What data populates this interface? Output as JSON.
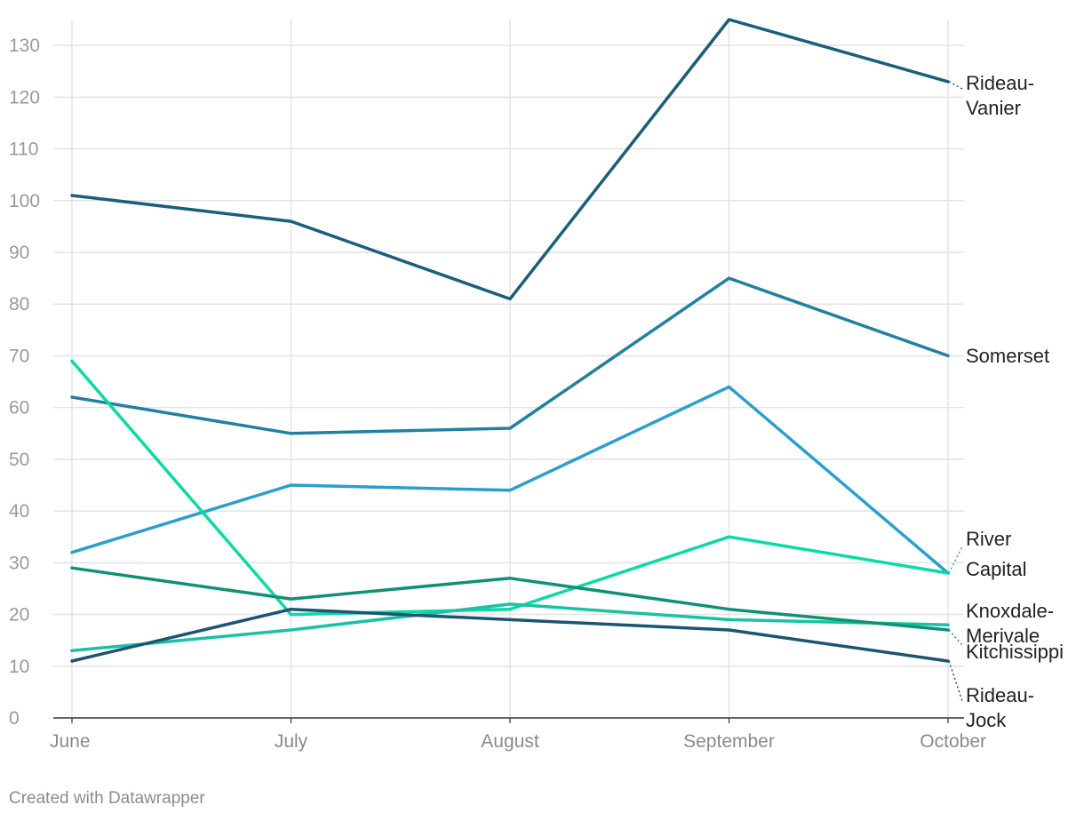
{
  "chart_data": {
    "type": "line",
    "x": [
      "June",
      "July",
      "August",
      "September",
      "October"
    ],
    "ylim": [
      0,
      135
    ],
    "yticks": [
      0,
      10,
      20,
      30,
      40,
      50,
      60,
      70,
      80,
      90,
      100,
      110,
      120,
      130
    ],
    "grid": true,
    "legend": "inline labels at line ends (right)",
    "series": [
      {
        "name": "Rideau-Vanier",
        "label_lines": [
          "Rideau-",
          "Vanier"
        ],
        "color": "#1a5f7a",
        "values": [
          101,
          96,
          81,
          135,
          123
        ]
      },
      {
        "name": "Somerset",
        "label_lines": [
          "Somerset"
        ],
        "color": "#2380a0",
        "values": [
          62,
          55,
          56,
          85,
          70
        ]
      },
      {
        "name": "River",
        "label_lines": [
          "River"
        ],
        "color": "#2b9fcc",
        "values": [
          32,
          45,
          44,
          64,
          28
        ]
      },
      {
        "name": "Capital",
        "label_lines": [
          "Capital"
        ],
        "color": "#0bdaa3",
        "values": [
          69,
          20,
          21,
          35,
          28
        ]
      },
      {
        "name": "Knoxdale-Merivale",
        "label_lines": [
          "Knoxdale-",
          "Merivale"
        ],
        "color": "#18c2a4",
        "values": [
          13,
          17,
          22,
          19,
          18
        ]
      },
      {
        "name": "Kitchissippi",
        "label_lines": [
          "Kitchissippi"
        ],
        "color": "#129074",
        "values": [
          29,
          23,
          27,
          21,
          17
        ]
      },
      {
        "name": "Rideau-Jock",
        "label_lines": [
          "Rideau-",
          "Jock"
        ],
        "color": "#1b5572",
        "values": [
          11,
          21,
          19,
          17,
          11
        ]
      }
    ]
  },
  "footer": {
    "credit": "Created with Datawrapper"
  }
}
